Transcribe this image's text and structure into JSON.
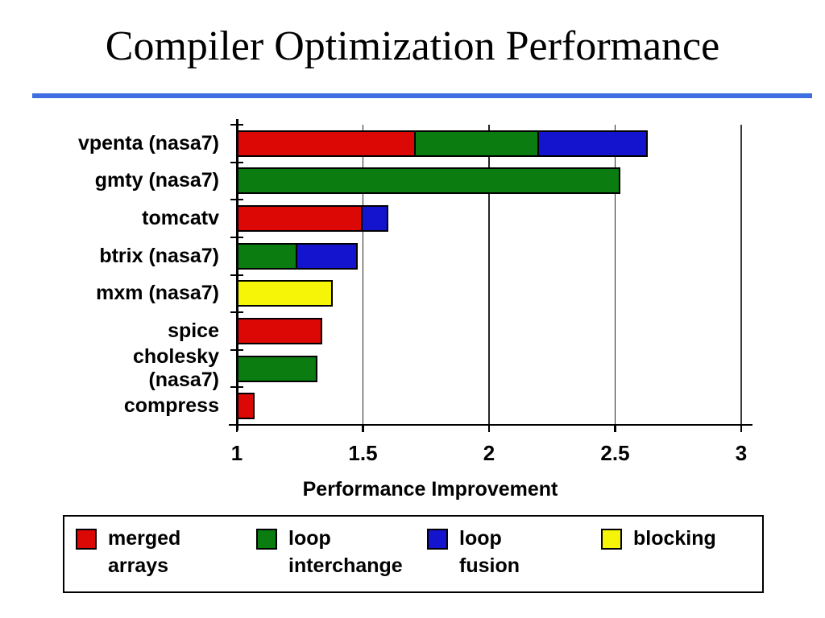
{
  "slide": {
    "title": "Compiler Optimization Performance",
    "background": "#FFFFFF"
  },
  "colors": {
    "title_text": "#000000",
    "title_rule": "#3E6EE1",
    "axis": "#000000",
    "gridline": "#262626",
    "plot_right_border": "#3A3A3A",
    "bar_border": "#000000",
    "merged_arrays": "#DC0806",
    "loop_interchange": "#0A7C10",
    "loop_fusion": "#1414CE",
    "blocking": "#F6F508"
  },
  "chart_data": {
    "type": "bar",
    "orientation": "horizontal",
    "stacked": true,
    "title": "",
    "xlabel": "Performance Improvement",
    "ylabel": "",
    "xlim": [
      1,
      3
    ],
    "xticks": [
      1,
      1.5,
      2,
      2.5,
      3
    ],
    "xtick_labels": [
      "1",
      "1.5",
      "2",
      "2.5",
      "3"
    ],
    "grid": "vertical gridlines at 1.5, 2, 2.5, 3",
    "legend_position": "boxed row below chart",
    "baseline": 1.0,
    "categories": [
      "vpenta (nasa7)",
      "gmty (nasa7)",
      "tomcatv",
      "btrix (nasa7)",
      "mxm (nasa7)",
      "spice",
      "cholesky (nasa7)",
      "compress"
    ],
    "rows": [
      {
        "label_lines": [
          "vpenta (nasa7)"
        ],
        "segments": [
          {
            "series": "merged arrays",
            "key": "merged_arrays",
            "from": 1.0,
            "to": 1.71
          },
          {
            "series": "loop interchange",
            "key": "loop_interchange",
            "from": 1.71,
            "to": 2.2
          },
          {
            "series": "loop fusion",
            "key": "loop_fusion",
            "from": 2.2,
            "to": 2.63
          }
        ]
      },
      {
        "label_lines": [
          "gmty (nasa7)"
        ],
        "segments": [
          {
            "series": "loop interchange",
            "key": "loop_interchange",
            "from": 1.0,
            "to": 2.52
          }
        ]
      },
      {
        "label_lines": [
          "tomcatv"
        ],
        "segments": [
          {
            "series": "merged arrays",
            "key": "merged_arrays",
            "from": 1.0,
            "to": 1.5
          },
          {
            "series": "loop fusion",
            "key": "loop_fusion",
            "from": 1.5,
            "to": 1.6
          }
        ]
      },
      {
        "label_lines": [
          "btrix (nasa7)"
        ],
        "segments": [
          {
            "series": "loop interchange",
            "key": "loop_interchange",
            "from": 1.0,
            "to": 1.24
          },
          {
            "series": "loop fusion",
            "key": "loop_fusion",
            "from": 1.24,
            "to": 1.48
          }
        ]
      },
      {
        "label_lines": [
          "mxm (nasa7)"
        ],
        "segments": [
          {
            "series": "blocking",
            "key": "blocking",
            "from": 1.0,
            "to": 1.38
          }
        ]
      },
      {
        "label_lines": [
          "spice"
        ],
        "segments": [
          {
            "series": "merged arrays",
            "key": "merged_arrays",
            "from": 1.0,
            "to": 1.34
          }
        ]
      },
      {
        "label_lines": [
          "cholesky",
          "(nasa7)"
        ],
        "segments": [
          {
            "series": "loop interchange",
            "key": "loop_interchange",
            "from": 1.0,
            "to": 1.32
          }
        ]
      },
      {
        "label_lines": [
          "compress"
        ],
        "segments": [
          {
            "series": "merged arrays",
            "key": "merged_arrays",
            "from": 1.0,
            "to": 1.07
          }
        ]
      }
    ]
  },
  "legend": {
    "items": [
      {
        "key": "merged_arrays",
        "label_lines": [
          "merged",
          "arrays"
        ]
      },
      {
        "key": "loop_interchange",
        "label_lines": [
          "loop",
          "interchange"
        ]
      },
      {
        "key": "loop_fusion",
        "label_lines": [
          "loop fusion"
        ]
      },
      {
        "key": "blocking",
        "label_lines": [
          "blocking"
        ]
      }
    ]
  }
}
